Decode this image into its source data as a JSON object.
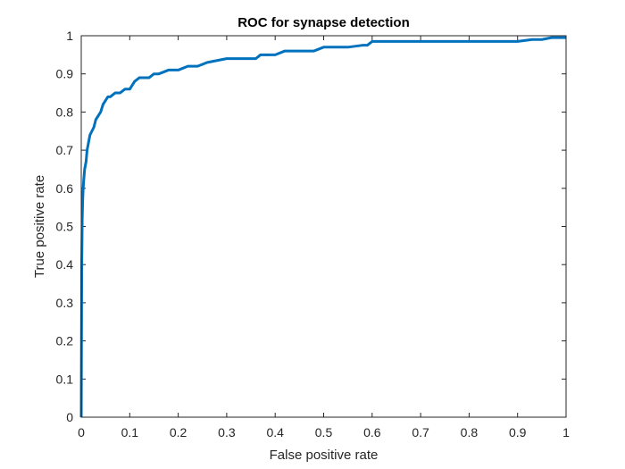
{
  "chart_data": {
    "type": "line",
    "title": "ROC for synapse detection",
    "xlabel": "False positive rate",
    "ylabel": "True positive rate",
    "xlim": [
      0,
      1
    ],
    "ylim": [
      0,
      1
    ],
    "x_ticks": [
      "0",
      "0.1",
      "0.2",
      "0.3",
      "0.4",
      "0.5",
      "0.6",
      "0.7",
      "0.8",
      "0.9",
      "1"
    ],
    "y_ticks": [
      "0",
      "0.1",
      "0.2",
      "0.3",
      "0.4",
      "0.5",
      "0.6",
      "0.7",
      "0.8",
      "0.9",
      "1"
    ],
    "x_tick_values": [
      0,
      0.1,
      0.2,
      0.3,
      0.4,
      0.5,
      0.6,
      0.7,
      0.8,
      0.9,
      1
    ],
    "y_tick_values": [
      0,
      0.1,
      0.2,
      0.3,
      0.4,
      0.5,
      0.6,
      0.7,
      0.8,
      0.9,
      1
    ],
    "grid": false,
    "box": true,
    "line_color": "#0072BD",
    "series": [
      {
        "x": [
          0,
          0.001,
          0.002,
          0.003,
          0.004,
          0.005,
          0.007,
          0.01,
          0.012,
          0.015,
          0.018,
          0.022,
          0.026,
          0.03,
          0.035,
          0.04,
          0.045,
          0.05,
          0.055,
          0.06,
          0.07,
          0.08,
          0.09,
          0.1,
          0.105,
          0.11,
          0.12,
          0.13,
          0.14,
          0.15,
          0.16,
          0.18,
          0.2,
          0.22,
          0.24,
          0.26,
          0.28,
          0.3,
          0.33,
          0.36,
          0.37,
          0.4,
          0.42,
          0.45,
          0.48,
          0.5,
          0.52,
          0.55,
          0.58,
          0.59,
          0.6,
          0.65,
          0.7,
          0.8,
          0.9,
          0.93,
          0.95,
          0.97,
          1.0
        ],
        "y": [
          0,
          0.4,
          0.52,
          0.57,
          0.6,
          0.62,
          0.65,
          0.67,
          0.7,
          0.72,
          0.74,
          0.75,
          0.76,
          0.78,
          0.79,
          0.8,
          0.82,
          0.83,
          0.84,
          0.84,
          0.85,
          0.85,
          0.86,
          0.86,
          0.87,
          0.88,
          0.89,
          0.89,
          0.89,
          0.9,
          0.9,
          0.91,
          0.91,
          0.92,
          0.92,
          0.93,
          0.935,
          0.94,
          0.94,
          0.94,
          0.95,
          0.95,
          0.96,
          0.96,
          0.96,
          0.97,
          0.97,
          0.97,
          0.975,
          0.975,
          0.985,
          0.985,
          0.985,
          0.985,
          0.985,
          0.99,
          0.99,
          0.995,
          0.995
        ]
      }
    ]
  }
}
